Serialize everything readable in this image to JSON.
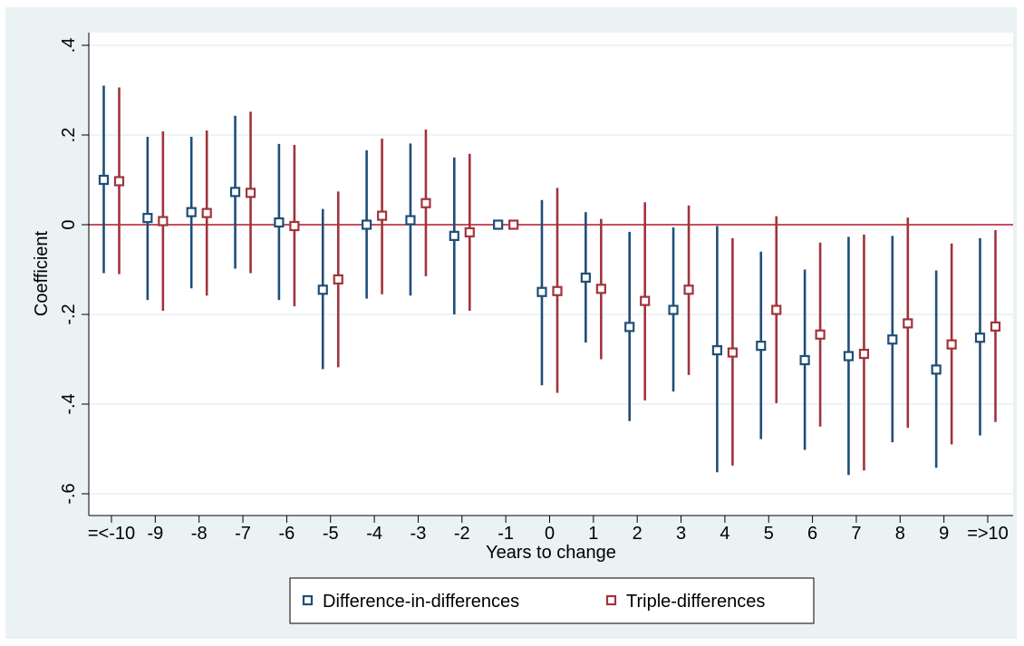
{
  "chart_data": {
    "type": "scatter",
    "subtype": "coefficient-plot-with-confidence-intervals",
    "xlabel": "Years to change",
    "ylabel": "Coefficient",
    "categories": [
      "=<-10",
      "-9",
      "-8",
      "-7",
      "-6",
      "-5",
      "-4",
      "-3",
      "-2",
      "-1",
      "0",
      "1",
      "2",
      "3",
      "4",
      "5",
      "6",
      "7",
      "8",
      "9",
      "=>10"
    ],
    "y_ticks": [
      0.4,
      0.2,
      0,
      -0.2,
      -0.4,
      -0.6
    ],
    "y_tick_labels": [
      ".4",
      ".2",
      "0",
      "-.2",
      "-.4",
      "-.6"
    ],
    "ylim": [
      -0.65,
      0.42
    ],
    "grid": true,
    "reference_line": {
      "y": 0,
      "color": "#b5142b"
    },
    "legend_position": "bottom",
    "series": [
      {
        "name": "Difference-in-differences",
        "color": "#1f4e79",
        "marker": "hollow-square",
        "values": [
          0.1,
          0.015,
          0.028,
          0.073,
          0.005,
          -0.145,
          0.0,
          0.01,
          -0.025,
          0.0,
          -0.15,
          -0.118,
          -0.228,
          -0.19,
          -0.28,
          -0.27,
          -0.302,
          -0.293,
          -0.256,
          -0.323,
          -0.252
        ],
        "ci_low": [
          -0.108,
          -0.168,
          -0.142,
          -0.098,
          -0.168,
          -0.322,
          -0.165,
          -0.158,
          -0.2,
          0.0,
          -0.358,
          -0.263,
          -0.438,
          -0.372,
          -0.552,
          -0.478,
          -0.502,
          -0.558,
          -0.485,
          -0.542,
          -0.47
        ],
        "ci_high": [
          0.31,
          0.196,
          0.196,
          0.243,
          0.18,
          0.035,
          0.166,
          0.181,
          0.15,
          0.0,
          0.055,
          0.028,
          -0.016,
          -0.006,
          -0.003,
          -0.06,
          -0.1,
          -0.027,
          -0.025,
          -0.102,
          -0.03
        ]
      },
      {
        "name": "Triple-differences",
        "color": "#a0343c",
        "marker": "hollow-square",
        "values": [
          0.097,
          0.008,
          0.026,
          0.071,
          -0.003,
          -0.122,
          0.02,
          0.048,
          -0.017,
          0.0,
          -0.148,
          -0.143,
          -0.17,
          -0.145,
          -0.285,
          -0.19,
          -0.245,
          -0.288,
          -0.22,
          -0.267,
          -0.227
        ],
        "ci_low": [
          -0.11,
          -0.192,
          -0.158,
          -0.108,
          -0.182,
          -0.318,
          -0.155,
          -0.115,
          -0.192,
          0.0,
          -0.375,
          -0.3,
          -0.392,
          -0.335,
          -0.537,
          -0.398,
          -0.45,
          -0.548,
          -0.453,
          -0.49,
          -0.44
        ],
        "ci_high": [
          0.306,
          0.208,
          0.21,
          0.252,
          0.178,
          0.074,
          0.192,
          0.212,
          0.158,
          0.0,
          0.082,
          0.013,
          0.05,
          0.043,
          -0.03,
          0.019,
          -0.04,
          -0.022,
          0.016,
          -0.042,
          -0.012
        ]
      }
    ]
  }
}
